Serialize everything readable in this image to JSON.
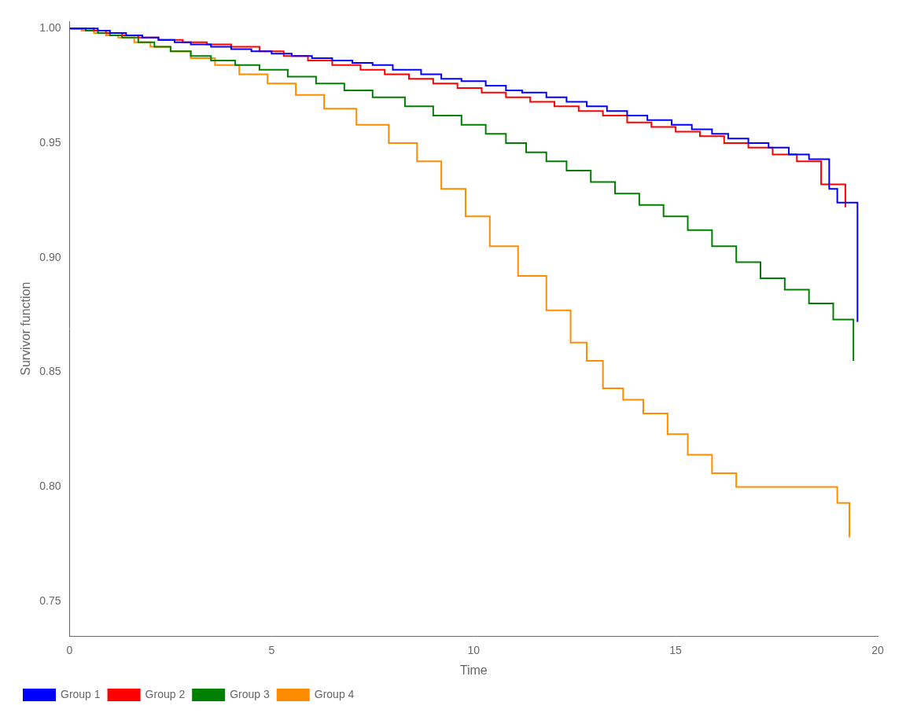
{
  "chart_data": {
    "type": "step",
    "xlabel": "Time",
    "ylabel": "Survivor function",
    "xlim": [
      0,
      20
    ],
    "ylim": [
      0.735,
      1.003
    ],
    "xticks": [
      0,
      5,
      10,
      15,
      20
    ],
    "yticks": [
      0.75,
      {
        "value": 0.8,
        "label": "0.80"
      },
      0.85,
      {
        "value": 0.9,
        "label": "0.90"
      },
      0.95,
      {
        "value": 1.0,
        "label": "1.00"
      }
    ],
    "grid": false,
    "legend": "lower left",
    "series": [
      {
        "name": "Group 1",
        "color": "blue",
        "x": [
          0,
          0.7,
          1.0,
          1.4,
          1.8,
          2.2,
          2.6,
          3.0,
          3.5,
          4.0,
          4.5,
          5.0,
          5.5,
          6.0,
          6.5,
          7.0,
          7.5,
          8.0,
          8.7,
          9.2,
          9.7,
          10.3,
          10.8,
          11.2,
          11.8,
          12.3,
          12.8,
          13.3,
          13.8,
          14.3,
          14.9,
          15.4,
          15.9,
          16.3,
          16.8,
          17.3,
          17.8,
          18.3,
          18.8,
          19.0,
          19.5
        ],
        "values": [
          1.0,
          0.999,
          0.998,
          0.997,
          0.996,
          0.995,
          0.994,
          0.993,
          0.992,
          0.991,
          0.99,
          0.989,
          0.988,
          0.987,
          0.986,
          0.985,
          0.984,
          0.982,
          0.98,
          0.978,
          0.977,
          0.975,
          0.973,
          0.972,
          0.97,
          0.968,
          0.966,
          0.964,
          0.962,
          0.96,
          0.958,
          0.956,
          0.954,
          0.952,
          0.95,
          0.948,
          0.945,
          0.943,
          0.93,
          0.924,
          0.872
        ]
      },
      {
        "name": "Group 2",
        "color": "red",
        "x": [
          0,
          0.6,
          0.9,
          1.3,
          1.7,
          2.2,
          2.8,
          3.4,
          4.0,
          4.7,
          5.3,
          5.9,
          6.5,
          7.2,
          7.8,
          8.4,
          9.0,
          9.6,
          10.2,
          10.8,
          11.4,
          12.0,
          12.6,
          13.2,
          13.8,
          14.4,
          15.0,
          15.6,
          16.2,
          16.8,
          17.4,
          18.0,
          18.6,
          19.2
        ],
        "values": [
          1.0,
          0.999,
          0.998,
          0.997,
          0.996,
          0.995,
          0.994,
          0.993,
          0.992,
          0.99,
          0.988,
          0.986,
          0.984,
          0.982,
          0.98,
          0.978,
          0.976,
          0.974,
          0.972,
          0.97,
          0.968,
          0.966,
          0.964,
          0.962,
          0.959,
          0.957,
          0.955,
          0.953,
          0.95,
          0.948,
          0.945,
          0.942,
          0.932,
          0.922
        ]
      },
      {
        "name": "Group 3",
        "color": "green",
        "x": [
          0,
          0.4,
          0.7,
          1.0,
          1.3,
          1.7,
          2.1,
          2.5,
          3.0,
          3.5,
          4.1,
          4.7,
          5.4,
          6.1,
          6.8,
          7.5,
          8.3,
          9.0,
          9.7,
          10.3,
          10.8,
          11.3,
          11.8,
          12.3,
          12.9,
          13.5,
          14.1,
          14.7,
          15.3,
          15.9,
          16.5,
          17.1,
          17.7,
          18.3,
          18.9,
          19.4
        ],
        "values": [
          1.0,
          0.999,
          0.998,
          0.997,
          0.996,
          0.994,
          0.992,
          0.99,
          0.988,
          0.986,
          0.984,
          0.982,
          0.979,
          0.976,
          0.973,
          0.97,
          0.966,
          0.962,
          0.958,
          0.954,
          0.95,
          0.946,
          0.942,
          0.938,
          0.933,
          0.928,
          0.923,
          0.918,
          0.912,
          0.905,
          0.898,
          0.891,
          0.886,
          0.88,
          0.873,
          0.855
        ]
      },
      {
        "name": "Group 4",
        "color": "darkorange",
        "x": [
          0,
          0.3,
          0.6,
          0.9,
          1.2,
          1.6,
          2.0,
          2.5,
          3.0,
          3.6,
          4.2,
          4.9,
          5.6,
          6.3,
          7.1,
          7.9,
          8.6,
          9.2,
          9.8,
          10.4,
          11.1,
          11.8,
          12.4,
          12.8,
          13.2,
          13.7,
          14.2,
          14.8,
          15.3,
          15.9,
          16.5,
          17.1,
          17.7,
          18.3,
          18.7,
          19.0,
          19.3
        ],
        "values": [
          1.0,
          0.999,
          0.998,
          0.997,
          0.996,
          0.994,
          0.992,
          0.99,
          0.987,
          0.984,
          0.98,
          0.976,
          0.971,
          0.965,
          0.958,
          0.95,
          0.942,
          0.93,
          0.918,
          0.905,
          0.892,
          0.877,
          0.863,
          0.855,
          0.843,
          0.838,
          0.832,
          0.823,
          0.814,
          0.806,
          0.8,
          0.8,
          0.8,
          0.8,
          0.8,
          0.793,
          0.778
        ]
      }
    ]
  }
}
